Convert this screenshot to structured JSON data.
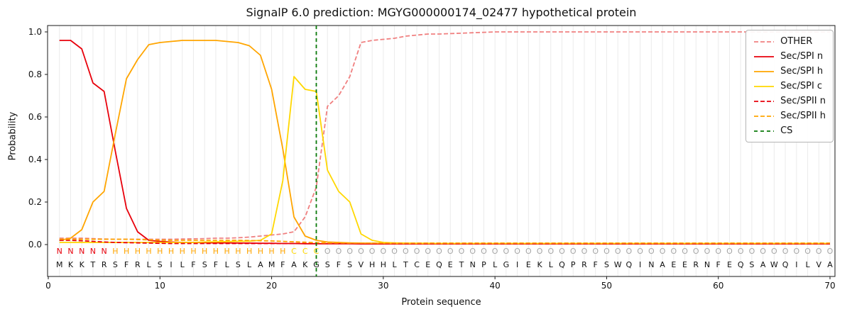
{
  "chart_data": {
    "type": "line",
    "title": "SignalP 6.0 prediction: MGYG000000174_02477 hypothetical protein",
    "xlabel": "Protein sequence",
    "ylabel": "Probability",
    "xlim": [
      0,
      70.5
    ],
    "ylim": [
      0.0,
      1.0
    ],
    "x_ticks": [
      0,
      10,
      20,
      30,
      40,
      50,
      60,
      70
    ],
    "y_ticks": [
      0.0,
      0.2,
      0.4,
      0.6,
      0.8,
      1.0
    ],
    "grid": true,
    "legend_position": "upper right",
    "sequence": "MKKTRSFRLSILFSFLSLAMFAKGSFSVHHLTCEQETNPLGIEKLQPRFSWQINAEERNFEQSAWQILVA",
    "region_labels": "NNNNNHHHHHHHHHHHHHHHHCCCOOOOOOOOOOOOOOOOOOOOOOOOOOOOOOOOOOOOOOOOOOOOOO",
    "region_colors": {
      "N": "#e8000b",
      "H": "#ffa500",
      "C": "#ffd700",
      "O": "#a6a6a6"
    },
    "sequence_color": "#111111",
    "cs_line": {
      "label": "CS",
      "position": 24,
      "color": "#0a7a0a",
      "dash": [
        5,
        4
      ]
    },
    "series": [
      {
        "name": "OTHER",
        "color": "#f08080",
        "dash": [
          6,
          3
        ],
        "values": [
          0.03,
          0.03,
          0.03,
          0.028,
          0.026,
          0.025,
          0.025,
          0.025,
          0.025,
          0.025,
          0.025,
          0.026,
          0.027,
          0.028,
          0.03,
          0.03,
          0.032,
          0.035,
          0.04,
          0.045,
          0.05,
          0.06,
          0.13,
          0.27,
          0.65,
          0.7,
          0.79,
          0.95,
          0.96,
          0.965,
          0.97,
          0.98,
          0.985,
          0.99,
          0.99,
          0.992,
          0.994,
          0.996,
          0.998,
          1.0,
          1.0,
          1.0,
          1.0,
          1.0,
          1.0,
          1.0,
          1.0,
          1.0,
          1.0,
          1.0,
          1.0,
          1.0,
          1.0,
          1.0,
          1.0,
          1.0,
          1.0,
          1.0,
          1.0,
          1.0,
          1.0,
          1.0,
          1.0,
          1.0,
          1.0,
          1.0,
          1.0,
          1.0,
          1.0,
          1.0
        ]
      },
      {
        "name": "Sec/SPI n",
        "color": "#e8000b",
        "dash": null,
        "values": [
          0.96,
          0.96,
          0.92,
          0.76,
          0.72,
          0.44,
          0.17,
          0.06,
          0.02,
          0.015,
          0.012,
          0.01,
          0.01,
          0.009,
          0.008,
          0.008,
          0.007,
          0.007,
          0.006,
          0.006,
          0.005,
          0.005,
          0.004,
          0.004,
          0.004,
          0.004,
          0.004,
          0.003,
          0.003,
          0.003,
          0.003,
          0.003,
          0.003,
          0.003,
          0.003,
          0.003,
          0.003,
          0.003,
          0.003,
          0.003,
          0.003,
          0.003,
          0.003,
          0.003,
          0.003,
          0.003,
          0.003,
          0.003,
          0.003,
          0.003,
          0.003,
          0.003,
          0.003,
          0.003,
          0.003,
          0.003,
          0.003,
          0.003,
          0.003,
          0.003,
          0.003,
          0.003,
          0.003,
          0.003,
          0.003,
          0.003,
          0.003,
          0.003,
          0.003,
          0.003
        ]
      },
      {
        "name": "Sec/SPI h",
        "color": "#ffa500",
        "dash": null,
        "values": [
          0.02,
          0.03,
          0.07,
          0.2,
          0.25,
          0.52,
          0.78,
          0.87,
          0.94,
          0.95,
          0.955,
          0.96,
          0.96,
          0.96,
          0.96,
          0.955,
          0.95,
          0.935,
          0.89,
          0.73,
          0.45,
          0.13,
          0.04,
          0.02,
          0.012,
          0.01,
          0.008,
          0.007,
          0.006,
          0.006,
          0.005,
          0.005,
          0.005,
          0.005,
          0.005,
          0.005,
          0.005,
          0.005,
          0.005,
          0.005,
          0.005,
          0.005,
          0.005,
          0.005,
          0.005,
          0.005,
          0.005,
          0.005,
          0.005,
          0.005,
          0.005,
          0.005,
          0.005,
          0.005,
          0.005,
          0.005,
          0.005,
          0.005,
          0.005,
          0.005,
          0.005,
          0.005,
          0.005,
          0.005,
          0.005,
          0.005,
          0.005,
          0.005,
          0.005,
          0.005
        ]
      },
      {
        "name": "Sec/SPI c",
        "color": "#ffd700",
        "dash": null,
        "values": [
          0.01,
          0.01,
          0.01,
          0.01,
          0.01,
          0.01,
          0.01,
          0.01,
          0.01,
          0.01,
          0.01,
          0.01,
          0.01,
          0.012,
          0.013,
          0.014,
          0.015,
          0.016,
          0.02,
          0.05,
          0.3,
          0.79,
          0.73,
          0.72,
          0.35,
          0.25,
          0.2,
          0.05,
          0.02,
          0.01,
          0.008,
          0.007,
          0.006,
          0.006,
          0.005,
          0.005,
          0.005,
          0.005,
          0.005,
          0.005,
          0.005,
          0.005,
          0.005,
          0.005,
          0.005,
          0.005,
          0.005,
          0.005,
          0.005,
          0.005,
          0.005,
          0.005,
          0.005,
          0.005,
          0.005,
          0.005,
          0.005,
          0.005,
          0.005,
          0.005,
          0.005,
          0.005,
          0.005,
          0.005,
          0.005,
          0.005,
          0.005,
          0.005,
          0.005,
          0.005
        ]
      },
      {
        "name": "Sec/SPII n",
        "color": "#e8000b",
        "dash": [
          6,
          3
        ],
        "values": [
          0.02,
          0.02,
          0.018,
          0.015,
          0.012,
          0.01,
          0.009,
          0.008,
          0.007,
          0.006,
          0.005,
          0.005,
          0.005,
          0.005,
          0.005,
          0.005,
          0.005,
          0.005,
          0.005,
          0.005,
          0.005,
          0.005,
          0.005,
          0.005,
          0.005,
          0.005,
          0.005,
          0.005,
          0.005,
          0.005,
          0.005,
          0.005,
          0.005,
          0.005,
          0.005,
          0.005,
          0.005,
          0.005,
          0.005,
          0.005,
          0.005,
          0.005,
          0.005,
          0.005,
          0.005,
          0.005,
          0.005,
          0.005,
          0.005,
          0.005,
          0.005,
          0.005,
          0.005,
          0.005,
          0.005,
          0.005,
          0.005,
          0.005,
          0.005,
          0.005,
          0.005,
          0.005,
          0.005,
          0.005,
          0.005,
          0.005,
          0.005,
          0.005,
          0.005,
          0.005
        ]
      },
      {
        "name": "Sec/SPII h",
        "color": "#ffa500",
        "dash": [
          6,
          3
        ],
        "values": [
          0.025,
          0.025,
          0.025,
          0.025,
          0.025,
          0.025,
          0.025,
          0.024,
          0.022,
          0.021,
          0.02,
          0.02,
          0.02,
          0.02,
          0.02,
          0.02,
          0.02,
          0.019,
          0.018,
          0.017,
          0.015,
          0.013,
          0.011,
          0.009,
          0.008,
          0.008,
          0.007,
          0.007,
          0.007,
          0.007,
          0.007,
          0.007,
          0.007,
          0.007,
          0.007,
          0.007,
          0.007,
          0.007,
          0.007,
          0.007,
          0.007,
          0.007,
          0.007,
          0.007,
          0.007,
          0.007,
          0.007,
          0.007,
          0.007,
          0.007,
          0.007,
          0.007,
          0.007,
          0.007,
          0.007,
          0.007,
          0.007,
          0.007,
          0.007,
          0.007,
          0.007,
          0.007,
          0.007,
          0.007,
          0.007,
          0.007,
          0.007,
          0.007,
          0.007,
          0.007
        ]
      }
    ]
  }
}
